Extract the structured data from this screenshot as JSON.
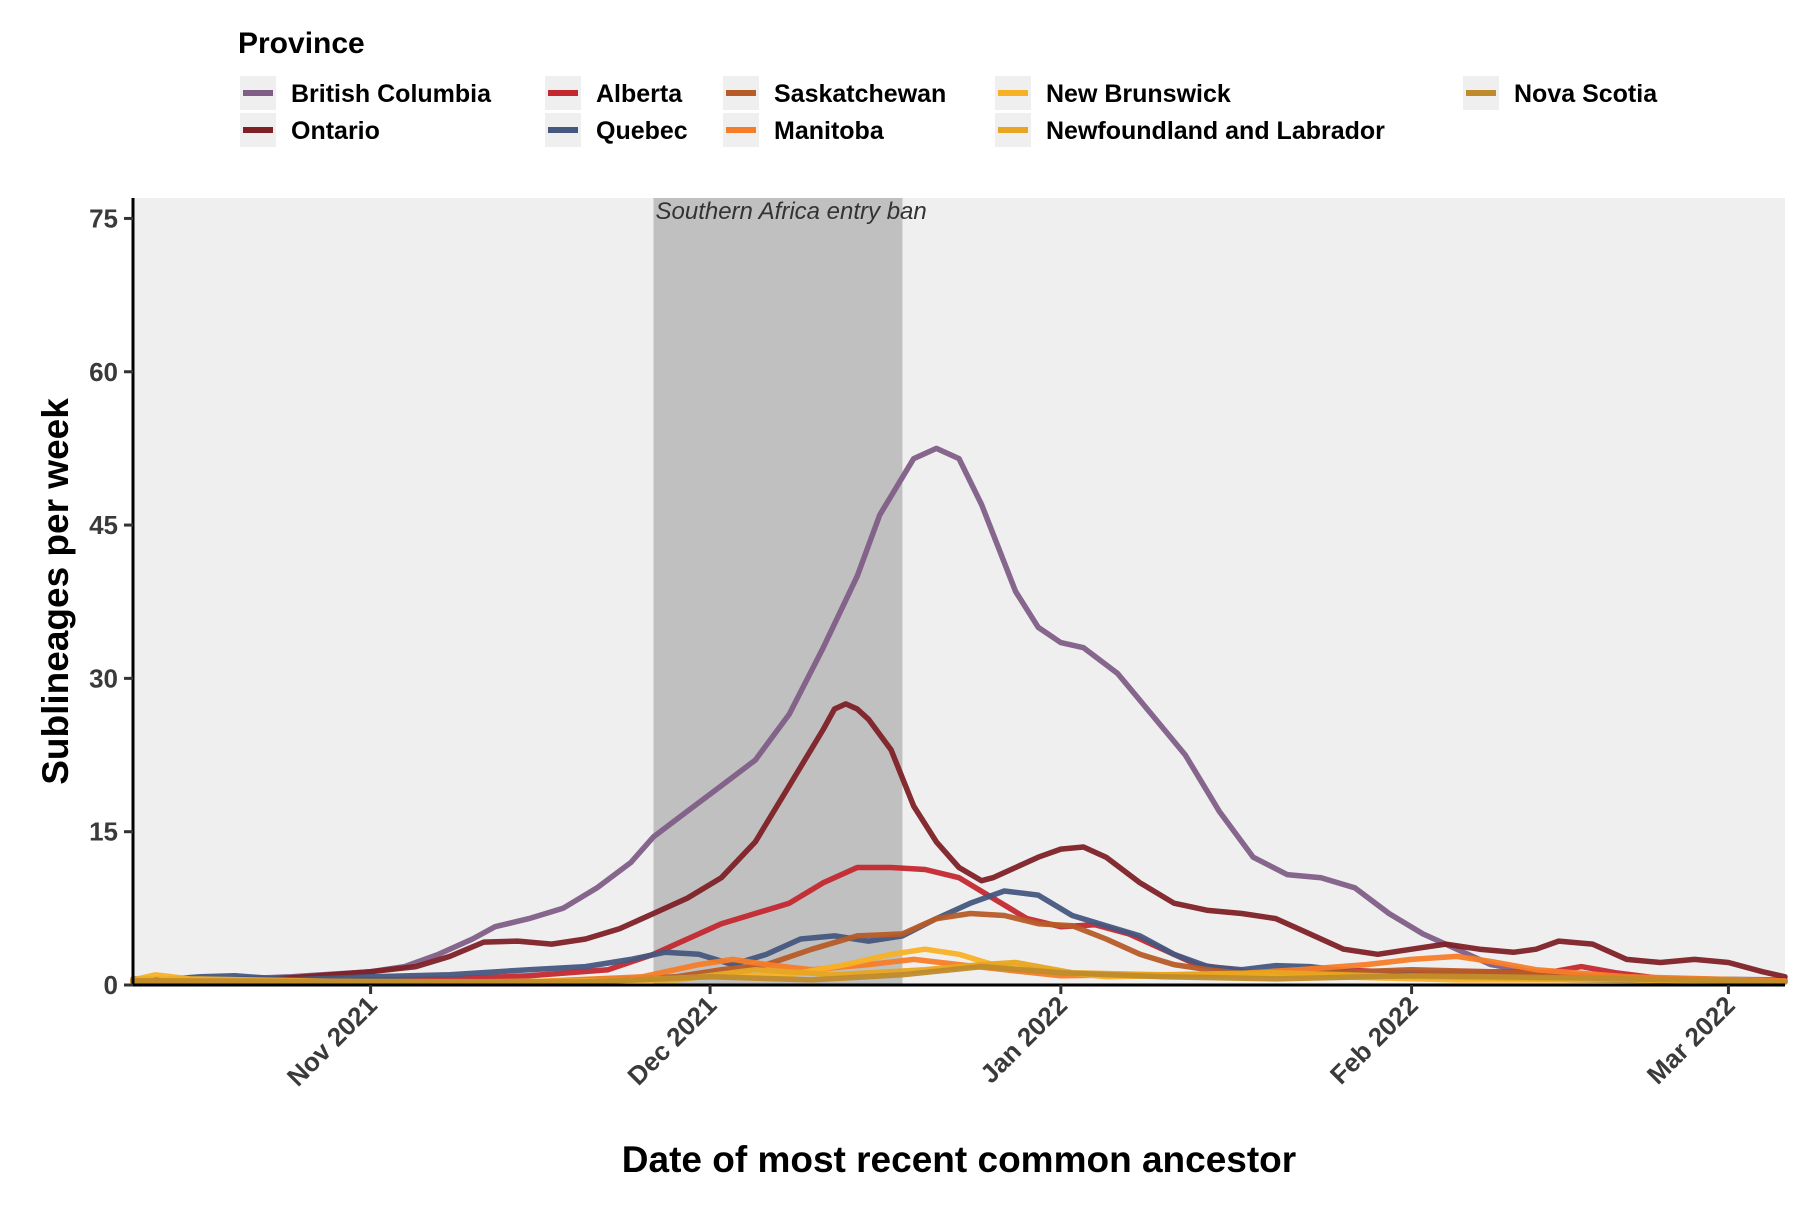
{
  "chart_data": {
    "type": "line",
    "xlabel": "Date of most recent common ancestor",
    "ylabel": "Sublineages per week",
    "x_axis_type": "date",
    "xlim": [
      "2021-10-11",
      "2022-03-06"
    ],
    "ylim": [
      0,
      77
    ],
    "y_ticks": [
      0,
      15,
      30,
      45,
      60,
      75
    ],
    "x_ticks": [
      {
        "date": "2021-11-01",
        "label": "Nov 2021"
      },
      {
        "date": "2021-12-01",
        "label": "Dec 2021"
      },
      {
        "date": "2022-01-01",
        "label": "Jan 2022"
      },
      {
        "date": "2022-02-01",
        "label": "Feb 2022"
      },
      {
        "date": "2022-03-01",
        "label": "Mar 2022"
      }
    ],
    "grid": false,
    "panel_background": "#efefef",
    "legend": {
      "title": "Province",
      "placement": "top"
    },
    "annotation": {
      "text": "Southern Africa entry ban",
      "start": "2021-11-26",
      "end": "2021-12-18",
      "color": "#c0c0c0"
    },
    "series": [
      {
        "name": "British Columbia",
        "color": "#7f5e87",
        "points": [
          [
            "2021-10-11",
            0.6
          ],
          [
            "2021-10-18",
            0.5
          ],
          [
            "2021-10-25",
            0.8
          ],
          [
            "2021-11-01",
            1.3
          ],
          [
            "2021-11-04",
            1.8
          ],
          [
            "2021-11-07",
            3.0
          ],
          [
            "2021-11-10",
            4.5
          ],
          [
            "2021-11-12",
            5.7
          ],
          [
            "2021-11-15",
            6.5
          ],
          [
            "2021-11-18",
            7.5
          ],
          [
            "2021-11-21",
            9.5
          ],
          [
            "2021-11-24",
            12.0
          ],
          [
            "2021-11-26",
            14.5
          ],
          [
            "2021-11-29",
            17.0
          ],
          [
            "2021-12-02",
            19.5
          ],
          [
            "2021-12-05",
            22.0
          ],
          [
            "2021-12-08",
            26.5
          ],
          [
            "2021-12-11",
            33.0
          ],
          [
            "2021-12-14",
            40.0
          ],
          [
            "2021-12-16",
            46.0
          ],
          [
            "2021-12-19",
            51.5
          ],
          [
            "2021-12-21",
            52.5
          ],
          [
            "2021-12-23",
            51.5
          ],
          [
            "2021-12-25",
            47.0
          ],
          [
            "2021-12-28",
            38.5
          ],
          [
            "2021-12-30",
            35.0
          ],
          [
            "2022-01-01",
            33.5
          ],
          [
            "2022-01-03",
            33.0
          ],
          [
            "2022-01-06",
            30.5
          ],
          [
            "2022-01-09",
            26.5
          ],
          [
            "2022-01-12",
            22.5
          ],
          [
            "2022-01-15",
            17.0
          ],
          [
            "2022-01-18",
            12.5
          ],
          [
            "2022-01-21",
            10.8
          ],
          [
            "2022-01-24",
            10.5
          ],
          [
            "2022-01-27",
            9.5
          ],
          [
            "2022-01-30",
            7.0
          ],
          [
            "2022-02-02",
            5.0
          ],
          [
            "2022-02-05",
            3.5
          ],
          [
            "2022-02-08",
            2.0
          ],
          [
            "2022-02-12",
            1.2
          ],
          [
            "2022-02-18",
            0.8
          ],
          [
            "2022-02-25",
            0.6
          ],
          [
            "2022-03-06",
            0.5
          ]
        ]
      },
      {
        "name": "Ontario",
        "color": "#7d2127",
        "points": [
          [
            "2021-10-11",
            0.5
          ],
          [
            "2021-10-18",
            0.4
          ],
          [
            "2021-10-25",
            0.7
          ],
          [
            "2021-11-01",
            1.3
          ],
          [
            "2021-11-05",
            1.8
          ],
          [
            "2021-11-08",
            2.8
          ],
          [
            "2021-11-11",
            4.2
          ],
          [
            "2021-11-14",
            4.3
          ],
          [
            "2021-11-17",
            4.0
          ],
          [
            "2021-11-20",
            4.5
          ],
          [
            "2021-11-23",
            5.5
          ],
          [
            "2021-11-26",
            7.0
          ],
          [
            "2021-11-29",
            8.5
          ],
          [
            "2021-12-02",
            10.5
          ],
          [
            "2021-12-05",
            14.0
          ],
          [
            "2021-12-08",
            19.5
          ],
          [
            "2021-12-11",
            25.0
          ],
          [
            "2021-12-12",
            27.0
          ],
          [
            "2021-12-13",
            27.5
          ],
          [
            "2021-12-14",
            27.0
          ],
          [
            "2021-12-15",
            26.0
          ],
          [
            "2021-12-17",
            23.0
          ],
          [
            "2021-12-19",
            17.5
          ],
          [
            "2021-12-21",
            14.0
          ],
          [
            "2021-12-23",
            11.5
          ],
          [
            "2021-12-25",
            10.2
          ],
          [
            "2021-12-26",
            10.5
          ],
          [
            "2021-12-28",
            11.5
          ],
          [
            "2021-12-30",
            12.5
          ],
          [
            "2022-01-01",
            13.3
          ],
          [
            "2022-01-03",
            13.5
          ],
          [
            "2022-01-05",
            12.5
          ],
          [
            "2022-01-08",
            10.0
          ],
          [
            "2022-01-11",
            8.0
          ],
          [
            "2022-01-14",
            7.3
          ],
          [
            "2022-01-17",
            7.0
          ],
          [
            "2022-01-20",
            6.5
          ],
          [
            "2022-01-23",
            5.0
          ],
          [
            "2022-01-26",
            3.5
          ],
          [
            "2022-01-29",
            3.0
          ],
          [
            "2022-02-01",
            3.5
          ],
          [
            "2022-02-04",
            4.0
          ],
          [
            "2022-02-07",
            3.5
          ],
          [
            "2022-02-10",
            3.2
          ],
          [
            "2022-02-12",
            3.5
          ],
          [
            "2022-02-14",
            4.3
          ],
          [
            "2022-02-17",
            4.0
          ],
          [
            "2022-02-20",
            2.5
          ],
          [
            "2022-02-23",
            2.2
          ],
          [
            "2022-02-26",
            2.5
          ],
          [
            "2022-03-01",
            2.2
          ],
          [
            "2022-03-04",
            1.3
          ],
          [
            "2022-03-06",
            0.8
          ]
        ]
      },
      {
        "name": "Alberta",
        "color": "#c3282f",
        "points": [
          [
            "2021-10-11",
            0.5
          ],
          [
            "2021-10-25",
            0.4
          ],
          [
            "2021-11-08",
            0.6
          ],
          [
            "2021-11-15",
            0.9
          ],
          [
            "2021-11-22",
            1.5
          ],
          [
            "2021-11-26",
            3.0
          ],
          [
            "2021-11-29",
            4.5
          ],
          [
            "2021-12-02",
            6.0
          ],
          [
            "2021-12-05",
            7.0
          ],
          [
            "2021-12-08",
            8.0
          ],
          [
            "2021-12-11",
            10.0
          ],
          [
            "2021-12-14",
            11.5
          ],
          [
            "2021-12-17",
            11.5
          ],
          [
            "2021-12-20",
            11.3
          ],
          [
            "2021-12-23",
            10.5
          ],
          [
            "2021-12-26",
            8.5
          ],
          [
            "2021-12-29",
            6.5
          ],
          [
            "2022-01-01",
            5.7
          ],
          [
            "2022-01-04",
            5.9
          ],
          [
            "2022-01-07",
            5.0
          ],
          [
            "2022-01-10",
            3.5
          ],
          [
            "2022-01-13",
            2.0
          ],
          [
            "2022-01-18",
            1.2
          ],
          [
            "2022-01-25",
            1.5
          ],
          [
            "2022-02-01",
            1.2
          ],
          [
            "2022-02-08",
            1.3
          ],
          [
            "2022-02-13",
            1.2
          ],
          [
            "2022-02-16",
            1.8
          ],
          [
            "2022-02-19",
            1.2
          ],
          [
            "2022-02-24",
            0.5
          ],
          [
            "2022-03-06",
            0.4
          ]
        ]
      },
      {
        "name": "Quebec",
        "color": "#46577f",
        "points": [
          [
            "2021-10-11",
            0.3
          ],
          [
            "2021-10-17",
            0.8
          ],
          [
            "2021-10-20",
            0.9
          ],
          [
            "2021-10-25",
            0.5
          ],
          [
            "2021-11-01",
            0.8
          ],
          [
            "2021-11-08",
            1.0
          ],
          [
            "2021-11-15",
            1.5
          ],
          [
            "2021-11-20",
            1.8
          ],
          [
            "2021-11-24",
            2.5
          ],
          [
            "2021-11-27",
            3.2
          ],
          [
            "2021-11-30",
            3.0
          ],
          [
            "2021-12-03",
            2.0
          ],
          [
            "2021-12-06",
            3.0
          ],
          [
            "2021-12-09",
            4.5
          ],
          [
            "2021-12-12",
            4.8
          ],
          [
            "2021-12-15",
            4.3
          ],
          [
            "2021-12-18",
            4.8
          ],
          [
            "2021-12-21",
            6.5
          ],
          [
            "2021-12-24",
            8.0
          ],
          [
            "2021-12-27",
            9.2
          ],
          [
            "2021-12-30",
            8.8
          ],
          [
            "2022-01-02",
            6.8
          ],
          [
            "2022-01-05",
            5.8
          ],
          [
            "2022-01-08",
            4.8
          ],
          [
            "2022-01-11",
            3.0
          ],
          [
            "2022-01-14",
            1.8
          ],
          [
            "2022-01-17",
            1.5
          ],
          [
            "2022-01-20",
            1.9
          ],
          [
            "2022-01-23",
            1.8
          ],
          [
            "2022-01-27",
            1.3
          ],
          [
            "2022-02-03",
            0.8
          ],
          [
            "2022-02-15",
            0.5
          ],
          [
            "2022-03-06",
            0.3
          ]
        ]
      },
      {
        "name": "Saskatchewan",
        "color": "#b75c28",
        "points": [
          [
            "2021-10-11",
            0.3
          ],
          [
            "2021-11-15",
            0.3
          ],
          [
            "2021-11-28",
            0.8
          ],
          [
            "2021-12-02",
            1.5
          ],
          [
            "2021-12-06",
            2.0
          ],
          [
            "2021-12-10",
            3.5
          ],
          [
            "2021-12-14",
            4.8
          ],
          [
            "2021-12-18",
            5.0
          ],
          [
            "2021-12-21",
            6.5
          ],
          [
            "2021-12-24",
            7.0
          ],
          [
            "2021-12-27",
            6.8
          ],
          [
            "2021-12-30",
            6.0
          ],
          [
            "2022-01-02",
            5.8
          ],
          [
            "2022-01-05",
            4.5
          ],
          [
            "2022-01-08",
            3.0
          ],
          [
            "2022-01-11",
            2.0
          ],
          [
            "2022-01-14",
            1.5
          ],
          [
            "2022-01-18",
            1.0
          ],
          [
            "2022-01-25",
            1.2
          ],
          [
            "2022-02-01",
            1.5
          ],
          [
            "2022-02-08",
            1.3
          ],
          [
            "2022-02-15",
            1.0
          ],
          [
            "2022-02-22",
            0.5
          ],
          [
            "2022-03-06",
            0.3
          ]
        ]
      },
      {
        "name": "Manitoba",
        "color": "#f57d28",
        "points": [
          [
            "2021-10-11",
            0.3
          ],
          [
            "2021-11-15",
            0.3
          ],
          [
            "2021-11-25",
            0.8
          ],
          [
            "2021-11-30",
            2.0
          ],
          [
            "2021-12-03",
            2.5
          ],
          [
            "2021-12-06",
            2.0
          ],
          [
            "2021-12-10",
            1.5
          ],
          [
            "2021-12-15",
            2.0
          ],
          [
            "2021-12-19",
            2.5
          ],
          [
            "2021-12-23",
            2.0
          ],
          [
            "2021-12-27",
            1.5
          ],
          [
            "2022-01-01",
            0.9
          ],
          [
            "2022-01-08",
            1.0
          ],
          [
            "2022-01-15",
            1.0
          ],
          [
            "2022-01-22",
            1.5
          ],
          [
            "2022-01-28",
            2.0
          ],
          [
            "2022-02-01",
            2.5
          ],
          [
            "2022-02-05",
            2.8
          ],
          [
            "2022-02-08",
            2.3
          ],
          [
            "2022-02-12",
            1.5
          ],
          [
            "2022-02-20",
            0.8
          ],
          [
            "2022-03-06",
            0.4
          ]
        ]
      },
      {
        "name": "New Brunswick",
        "color": "#f8b124",
        "points": [
          [
            "2021-10-11",
            0.5
          ],
          [
            "2021-10-13",
            1.0
          ],
          [
            "2021-10-16",
            0.6
          ],
          [
            "2021-11-01",
            0.3
          ],
          [
            "2021-11-20",
            0.3
          ],
          [
            "2021-12-01",
            0.8
          ],
          [
            "2021-12-08",
            1.0
          ],
          [
            "2021-12-13",
            2.0
          ],
          [
            "2021-12-17",
            3.0
          ],
          [
            "2021-12-20",
            3.5
          ],
          [
            "2021-12-23",
            3.0
          ],
          [
            "2021-12-26",
            2.0
          ],
          [
            "2021-12-30",
            1.5
          ],
          [
            "2022-01-05",
            0.8
          ],
          [
            "2022-01-15",
            1.0
          ],
          [
            "2022-01-25",
            0.8
          ],
          [
            "2022-02-05",
            0.5
          ],
          [
            "2022-02-20",
            0.5
          ],
          [
            "2022-03-06",
            0.3
          ]
        ]
      },
      {
        "name": "Newfoundland and Labrador",
        "color": "#e8a520",
        "points": [
          [
            "2021-10-11",
            0.4
          ],
          [
            "2021-11-10",
            0.3
          ],
          [
            "2021-11-28",
            0.5
          ],
          [
            "2021-12-05",
            1.5
          ],
          [
            "2021-12-12",
            1.0
          ],
          [
            "2021-12-20",
            1.5
          ],
          [
            "2021-12-25",
            2.0
          ],
          [
            "2021-12-28",
            2.2
          ],
          [
            "2022-01-02",
            1.2
          ],
          [
            "2022-01-10",
            1.0
          ],
          [
            "2022-01-20",
            1.2
          ],
          [
            "2022-02-01",
            0.8
          ],
          [
            "2022-02-15",
            0.6
          ],
          [
            "2022-03-06",
            0.3
          ]
        ]
      },
      {
        "name": "Nova Scotia",
        "color": "#bf8b2c",
        "points": [
          [
            "2021-10-11",
            0.4
          ],
          [
            "2021-11-20",
            0.3
          ],
          [
            "2021-12-01",
            0.8
          ],
          [
            "2021-12-10",
            0.5
          ],
          [
            "2021-12-18",
            1.0
          ],
          [
            "2021-12-25",
            1.8
          ],
          [
            "2022-01-01",
            1.2
          ],
          [
            "2022-01-10",
            0.8
          ],
          [
            "2022-01-20",
            0.6
          ],
          [
            "2022-02-01",
            0.9
          ],
          [
            "2022-02-15",
            0.7
          ],
          [
            "2022-03-06",
            0.3
          ]
        ]
      }
    ]
  }
}
